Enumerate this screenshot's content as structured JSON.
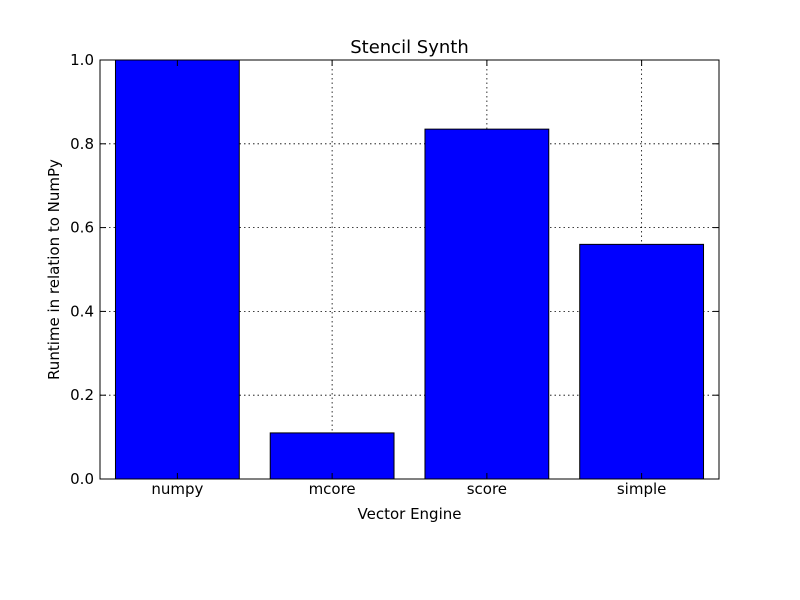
{
  "chart_data": {
    "type": "bar",
    "title": "Stencil Synth",
    "xlabel": "Vector Engine",
    "ylabel": "Runtime in relation to NumPy",
    "categories": [
      "numpy",
      "mcore",
      "score",
      "simple"
    ],
    "values": [
      1.0,
      0.11,
      0.835,
      0.56
    ],
    "ylim": [
      0,
      1.0
    ],
    "yticks": [
      0.0,
      0.2,
      0.4,
      0.6,
      0.8,
      1.0
    ],
    "ytick_labels": [
      "0.0",
      "0.2",
      "0.4",
      "0.6",
      "0.8",
      "1.0"
    ],
    "grid": true,
    "bar_color": "#0000ff"
  }
}
